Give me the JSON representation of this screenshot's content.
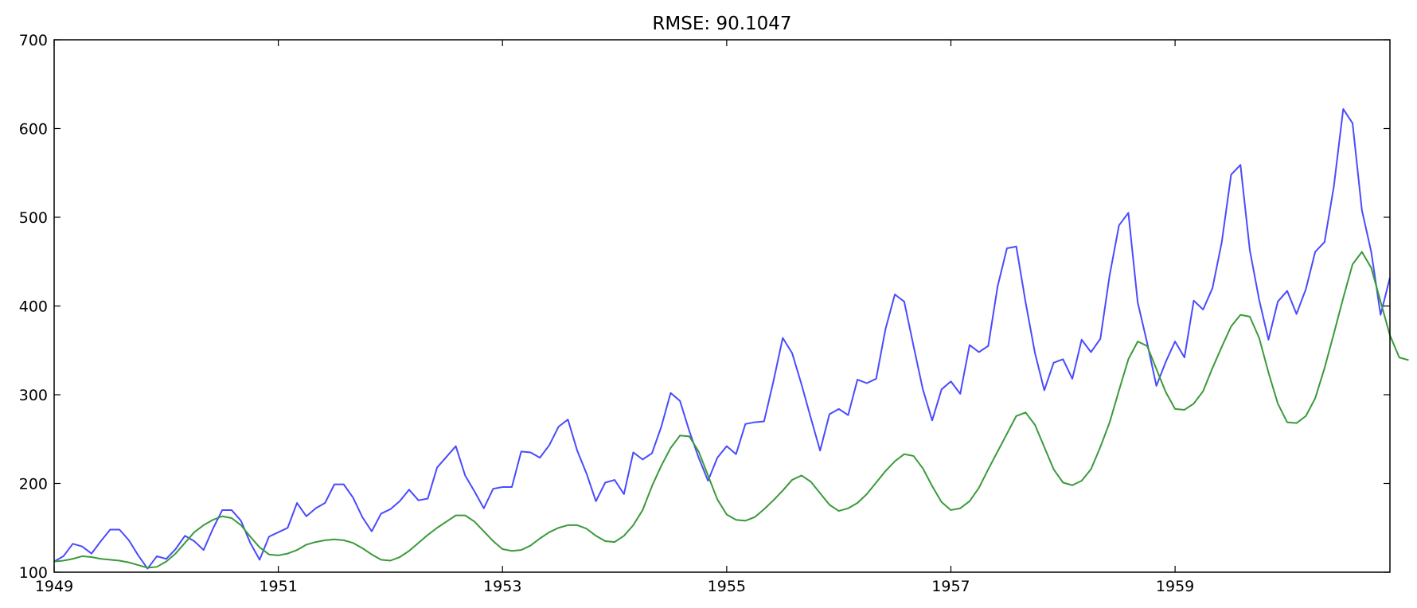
{
  "chart_data": {
    "type": "line",
    "title": "RMSE: 90.1047",
    "xlabel": "",
    "ylabel": "",
    "xlim": [
      1949.0,
      1960.9167
    ],
    "ylim": [
      100,
      700
    ],
    "x_ticks": [
      1949,
      1951,
      1953,
      1955,
      1957,
      1959
    ],
    "x_tick_labels": [
      "1949",
      "1951",
      "1953",
      "1955",
      "1957",
      "1959"
    ],
    "y_ticks": [
      100,
      200,
      300,
      400,
      500,
      600,
      700
    ],
    "y_tick_labels": [
      "100",
      "200",
      "300",
      "400",
      "500",
      "600",
      "700"
    ],
    "grid": false,
    "legend": "none",
    "x_start": 1949.0,
    "x_step": 0.083333,
    "series": [
      {
        "color": "#4a4aff",
        "values": [
          112,
          118,
          132,
          129,
          121,
          135,
          148,
          148,
          136,
          119,
          104,
          118,
          115,
          126,
          141,
          135,
          125,
          149,
          170,
          170,
          158,
          133,
          114,
          140,
          145,
          150,
          178,
          163,
          172,
          178,
          199,
          199,
          184,
          162,
          146,
          166,
          171,
          180,
          193,
          181,
          183,
          218,
          230,
          242,
          209,
          191,
          172,
          194,
          196,
          196,
          236,
          235,
          229,
          243,
          264,
          272,
          237,
          211,
          180,
          201,
          204,
          188,
          235,
          227,
          234,
          264,
          302,
          293,
          259,
          229,
          203,
          229,
          242,
          233,
          267,
          269,
          270,
          315,
          364,
          347,
          312,
          274,
          237,
          278,
          284,
          277,
          317,
          313,
          318,
          374,
          413,
          405,
          355,
          306,
          271,
          306,
          315,
          301,
          356,
          348,
          355,
          422,
          465,
          467,
          404,
          347,
          305,
          336,
          340,
          318,
          362,
          348,
          363,
          435,
          491,
          505,
          404,
          359,
          310,
          337,
          360,
          342,
          406,
          396,
          420,
          472,
          548,
          559,
          463,
          407,
          362,
          405,
          417,
          391,
          419,
          461,
          472,
          535,
          622,
          606,
          508,
          461,
          390,
          432
        ]
      },
      {
        "color": "#3a9a3a",
        "values": [
          112,
          113,
          115,
          118,
          117,
          115,
          114,
          113,
          111,
          108,
          105,
          106,
          112,
          121,
          133,
          145,
          153,
          159,
          163,
          161,
          153,
          140,
          128,
          120,
          119,
          121,
          125,
          131,
          134,
          136,
          137,
          136,
          133,
          127,
          120,
          114,
          113,
          117,
          124,
          133,
          142,
          150,
          157,
          164,
          164,
          157,
          146,
          135,
          126,
          124,
          125,
          130,
          138,
          145,
          150,
          153,
          153,
          149,
          141,
          135,
          134,
          141,
          153,
          170,
          197,
          220,
          240,
          254,
          253,
          236,
          209,
          182,
          165,
          159,
          158,
          162,
          171,
          181,
          192,
          204,
          209,
          202,
          189,
          176,
          169,
          172,
          178,
          188,
          201,
          214,
          225,
          233,
          231,
          217,
          197,
          179,
          170,
          172,
          180,
          195,
          216,
          236,
          256,
          276,
          280,
          266,
          241,
          216,
          201,
          198,
          203,
          216,
          241,
          269,
          305,
          340,
          360,
          355,
          329,
          303,
          284,
          283,
          290,
          304,
          330,
          354,
          377,
          390,
          388,
          364,
          325,
          290,
          269,
          268,
          276,
          296,
          330,
          369,
          409,
          447,
          461,
          443,
          405,
          367,
          342,
          339
        ]
      }
    ]
  }
}
